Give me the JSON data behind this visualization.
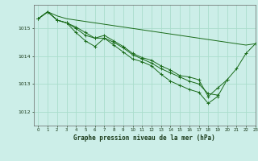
{
  "title": "Graphe pression niveau de la mer (hPa)",
  "bg_color": "#cceee8",
  "grid_color": "#aaddcc",
  "line_color": "#1a6b1a",
  "xlim": [
    -0.5,
    23
  ],
  "ylim": [
    1011.5,
    1015.85
  ],
  "yticks": [
    1012,
    1013,
    1014,
    1015
  ],
  "xticks": [
    0,
    1,
    2,
    3,
    4,
    5,
    6,
    7,
    8,
    9,
    10,
    11,
    12,
    13,
    14,
    15,
    16,
    17,
    18,
    19,
    20,
    21,
    22,
    23
  ],
  "series": [
    {
      "x": [
        0,
        1,
        2,
        3,
        4,
        5,
        6,
        7,
        8,
        9,
        10,
        11,
        12,
        13,
        14,
        15,
        16,
        17,
        18,
        19,
        20,
        21,
        22,
        23
      ],
      "y": [
        1015.35,
        1015.6,
        1015.45,
        1015.35,
        1015.3,
        1015.25,
        1015.2,
        1015.15,
        1015.1,
        1015.05,
        1015.0,
        1014.95,
        1014.9,
        1014.85,
        1014.8,
        1014.75,
        1014.7,
        1014.65,
        1014.6,
        1014.55,
        1014.5,
        1014.45,
        1014.4,
        1014.45
      ],
      "has_markers": false
    },
    {
      "x": [
        0,
        1,
        2,
        3,
        4,
        5,
        6,
        7,
        8,
        9,
        10,
        11,
        12,
        13,
        14,
        15,
        16,
        17,
        18,
        19,
        20,
        21,
        22,
        23
      ],
      "y": [
        1015.35,
        1015.6,
        1015.3,
        1015.2,
        1015.0,
        1014.75,
        1014.65,
        1014.75,
        1014.55,
        1014.35,
        1014.1,
        1013.95,
        1013.85,
        1013.65,
        1013.5,
        1013.3,
        1013.25,
        1013.15,
        1012.55,
        1012.85,
        1013.15,
        1013.55,
        1014.1,
        1014.45
      ],
      "has_markers": true
    },
    {
      "x": [
        0,
        1,
        2,
        3,
        4,
        5,
        6,
        7,
        8,
        9,
        10,
        11,
        12,
        13,
        14,
        15,
        16,
        17,
        18,
        19,
        20
      ],
      "y": [
        1015.35,
        1015.6,
        1015.3,
        1015.2,
        1014.85,
        1014.55,
        1014.35,
        1014.65,
        1014.4,
        1014.15,
        1013.9,
        1013.8,
        1013.65,
        1013.35,
        1013.1,
        1012.95,
        1012.8,
        1012.7,
        1012.3,
        1012.55,
        1013.15
      ],
      "has_markers": true
    },
    {
      "x": [
        0,
        1,
        2,
        3,
        4,
        5,
        6,
        7,
        8,
        9,
        10,
        11,
        12,
        13,
        14,
        15,
        16,
        17,
        18,
        19,
        20
      ],
      "y": [
        1015.35,
        1015.6,
        1015.3,
        1015.2,
        1015.05,
        1014.85,
        1014.65,
        1014.65,
        1014.5,
        1014.3,
        1014.05,
        1013.9,
        1013.75,
        1013.55,
        1013.4,
        1013.25,
        1013.1,
        1013.0,
        1012.65,
        1012.6,
        null
      ],
      "has_markers": true
    }
  ]
}
